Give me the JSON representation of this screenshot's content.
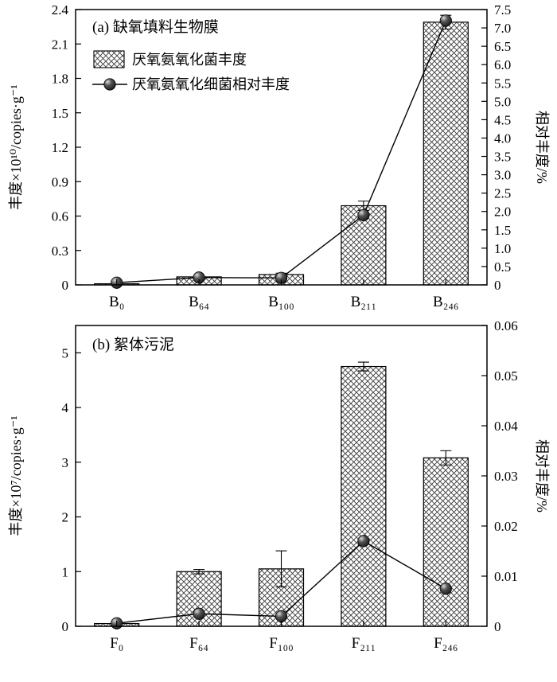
{
  "figure": {
    "background": "#ffffff",
    "style": {
      "bar_fill": "#ffffff",
      "hatch_color": "#3a3a3a",
      "line_color": "#000000",
      "marker_fill": "#111111",
      "axis_color": "#000000"
    }
  },
  "chart_data": [
    {
      "panel": "a",
      "type": "bar+line",
      "title": "(a) 缺氧填料生物膜",
      "categories": [
        "B₀",
        "B₆₄",
        "B₁₀₀",
        "B₂₁₁",
        "B₂₄₆"
      ],
      "left_axis": {
        "label": "丰度×10¹⁰/copies·g⁻¹",
        "lim": [
          0,
          2.4
        ],
        "ticks": [
          0,
          0.3,
          0.6,
          0.9,
          1.2,
          1.5,
          1.8,
          2.1,
          2.4
        ],
        "tick_labels": [
          "0",
          "0.3",
          "0.6",
          "0.9",
          "1.2",
          "1.5",
          "1.8",
          "2.1",
          "2.4"
        ]
      },
      "right_axis": {
        "label": "相对丰度/%",
        "lim": [
          0,
          7.5
        ],
        "ticks": [
          0,
          0.5,
          1,
          1.5,
          2,
          2.5,
          3,
          3.5,
          4,
          4.5,
          5,
          5.5,
          6,
          6.5,
          7,
          7.5
        ],
        "tick_labels": [
          "0",
          "0.5",
          "1.0",
          "1.5",
          "2.0",
          "2.5",
          "3.0",
          "3.5",
          "4.0",
          "4.5",
          "5.0",
          "5.5",
          "6.0",
          "6.5",
          "7.0",
          "7.5"
        ]
      },
      "bar_series": {
        "name": "厌氧氨氧化菌丰度",
        "axis": "left",
        "values": [
          0.01,
          0.07,
          0.09,
          0.69,
          2.29
        ],
        "errors": [
          0,
          0.012,
          0.012,
          0.04,
          0.06
        ]
      },
      "line_series": {
        "name": "厌氧氨氧化细菌相对丰度",
        "axis": "right",
        "values": [
          0.06,
          0.2,
          0.19,
          1.9,
          7.2
        ]
      },
      "legend": {
        "show": true,
        "position": "upper-left-inside",
        "items": [
          {
            "label": "厌氧氨氧化菌丰度",
            "swatch": "hatched-bar"
          },
          {
            "label": "厌氧氨氧化细菌相对丰度",
            "swatch": "line-marker"
          }
        ]
      }
    },
    {
      "panel": "b",
      "type": "bar+line",
      "title": "(b) 絮体污泥",
      "categories": [
        "F₀",
        "F₆₄",
        "F₁₀₀",
        "F₂₁₁",
        "F₂₄₆"
      ],
      "left_axis": {
        "label": "丰度×10⁷/copies·g⁻¹",
        "lim": [
          0,
          5.5
        ],
        "ticks": [
          0,
          1,
          2,
          3,
          4,
          5
        ],
        "tick_labels": [
          "0",
          "1",
          "2",
          "3",
          "4",
          "5"
        ]
      },
      "right_axis": {
        "label": "相对丰度/%",
        "lim": [
          0,
          0.06
        ],
        "ticks": [
          0,
          0.01,
          0.02,
          0.03,
          0.04,
          0.05,
          0.06
        ],
        "tick_labels": [
          "0",
          "0.01",
          "0.02",
          "0.03",
          "0.04",
          "0.05",
          "0.06"
        ]
      },
      "bar_series": {
        "name": "厌氧氨氧化菌丰度",
        "axis": "left",
        "values": [
          0.05,
          1.0,
          1.05,
          4.75,
          3.08
        ],
        "errors": [
          0.02,
          0.04,
          0.33,
          0.08,
          0.13
        ]
      },
      "line_series": {
        "name": "厌氧氨氧化细菌相对丰度",
        "axis": "right",
        "values": [
          0.0006,
          0.0025,
          0.002,
          0.017,
          0.0075
        ]
      },
      "legend": {
        "show": false,
        "items": []
      }
    }
  ]
}
